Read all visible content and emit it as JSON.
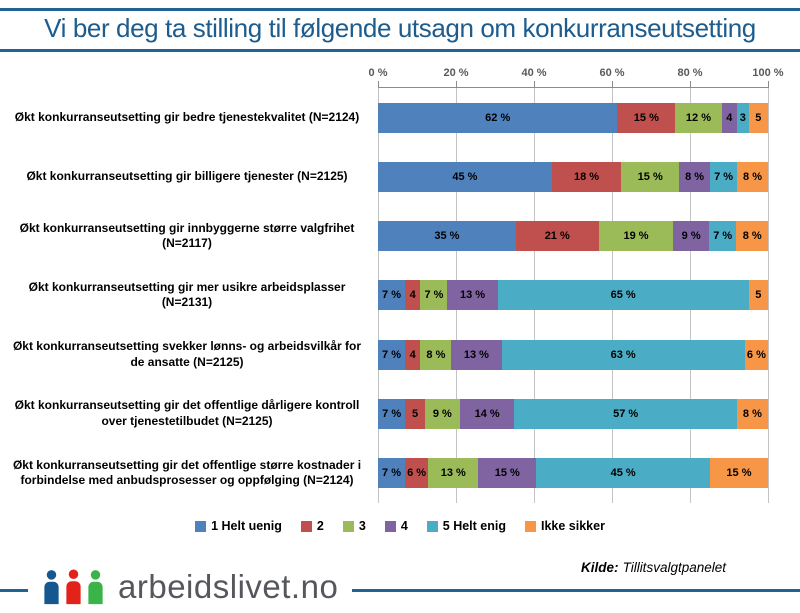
{
  "header": {
    "title": "Vi ber deg ta stilling til følgende utsagn om konkurranseutsetting"
  },
  "chart_data": {
    "type": "bar",
    "stacked": true,
    "orientation": "horizontal",
    "title": "",
    "xlabel": "",
    "ylabel": "",
    "xlim": [
      0,
      100
    ],
    "grid": true,
    "legend_position": "bottom",
    "x_axis_ticks": [
      "0 %",
      "20 %",
      "40 %",
      "60 %",
      "80 %",
      "100 %"
    ],
    "categories": [
      "Økt konkurranseutsetting gir bedre tjenestekvalitet (N=2124)",
      "Økt konkurranseutsetting gir billigere tjenester (N=2125)",
      "Økt konkurranseutsetting gir innbyggerne større valgfrihet (N=2117)",
      "Økt konkurranseutsetting gir mer usikre arbeidsplasser (N=2131)",
      "Økt konkurranseutsetting svekker lønns- og arbeidsvilkår for de ansatte (N=2125)",
      "Økt konkurranseutsetting gir det offentlige dårligere kontroll over tjenestetilbudet (N=2125)",
      "Økt konkurranseutsetting gir det offentlige større kostnader i forbindelse med anbudsprosesser og oppfølging (N=2124)"
    ],
    "series": [
      {
        "name": "1 Helt uenig",
        "color": "#4F81BD",
        "values": [
          62,
          45,
          35,
          7,
          7,
          7,
          7
        ],
        "labels": [
          "62 %",
          "45 %",
          "35 %",
          "7 %",
          "7 %",
          "7 %",
          "7 %"
        ]
      },
      {
        "name": "2",
        "color": "#C0504D",
        "values": [
          15,
          18,
          21,
          4,
          4,
          5,
          6
        ],
        "labels": [
          "15 %",
          "18 %",
          "21 %",
          "4",
          "4",
          "5",
          "6 %"
        ]
      },
      {
        "name": "3",
        "color": "#9BBB59",
        "values": [
          12,
          15,
          19,
          7,
          8,
          9,
          13
        ],
        "labels": [
          "12 %",
          "15 %",
          "19 %",
          "7 %",
          "8 %",
          "9 %",
          "13 %"
        ]
      },
      {
        "name": "4",
        "color": "#8064A2",
        "values": [
          4,
          8,
          9,
          13,
          13,
          14,
          15
        ],
        "labels": [
          "4",
          "8 %",
          "9 %",
          "13 %",
          "13 %",
          "14 %",
          "15 %"
        ]
      },
      {
        "name": "5 Helt enig",
        "color": "#4BACC6",
        "values": [
          3,
          7,
          7,
          65,
          63,
          57,
          45
        ],
        "labels": [
          "3",
          "7 %",
          "7 %",
          "65 %",
          "63 %",
          "57 %",
          "45 %"
        ]
      },
      {
        "name": "Ikke sikker",
        "color": "#F79646",
        "values": [
          5,
          8,
          8,
          5,
          6,
          8,
          15
        ],
        "labels": [
          "5",
          "8 %",
          "8 %",
          "5",
          "6 %",
          "8 %",
          "15 %"
        ]
      }
    ]
  },
  "source": {
    "label": "Kilde:",
    "value": "Tillitsvalgtpanelet"
  },
  "footer": {
    "brand": "arbeidslivet.no"
  },
  "colors": {
    "rule": "#1F6492",
    "title_text": "#1D5C8D",
    "axis_text": "#595959",
    "gridline": "#C3C3C3",
    "logo_person_blue": "#15588F",
    "logo_person_red": "#E32219",
    "logo_person_green": "#3AB449",
    "brand_text": "#55575C"
  }
}
